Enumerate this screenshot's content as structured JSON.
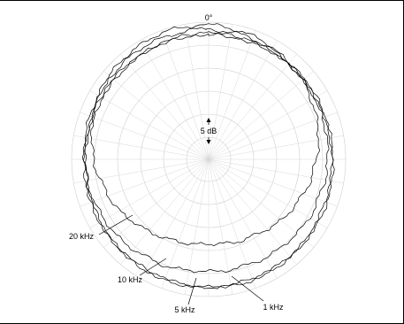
{
  "chart_data": {
    "type": "polar",
    "title": "",
    "top_label": "0°",
    "scale_label": "5 dB",
    "grid": true,
    "rings_db": [
      0,
      -5,
      -10,
      -15,
      -20,
      -25,
      -30
    ],
    "series": [
      {
        "name": "1 kHz",
        "radius_db_by_angle": {
          "angles_deg": [
            0,
            30,
            60,
            90,
            120,
            150,
            180,
            210,
            240,
            270,
            300,
            330
          ],
          "values_db": [
            0,
            -0.3,
            -0.8,
            -1.2,
            -1.6,
            -2.0,
            -2.2,
            -2.0,
            -1.6,
            -1.2,
            -0.8,
            -0.3
          ]
        }
      },
      {
        "name": "5 kHz",
        "radius_db_by_angle": {
          "angles_deg": [
            0,
            30,
            60,
            90,
            120,
            150,
            180,
            210,
            240,
            270,
            300,
            330
          ],
          "values_db": [
            0,
            -0.2,
            -0.6,
            -1.0,
            -1.4,
            -1.8,
            -2.0,
            -1.9,
            -1.5,
            -1.1,
            -0.6,
            -0.2
          ]
        }
      },
      {
        "name": "10 kHz",
        "radius_db_by_angle": {
          "angles_deg": [
            0,
            30,
            60,
            90,
            120,
            150,
            180,
            210,
            240,
            270,
            300,
            330
          ],
          "values_db": [
            0,
            -0.2,
            -0.5,
            -1.0,
            -1.8,
            -3.0,
            -3.8,
            -3.0,
            -1.8,
            -1.0,
            -0.5,
            -0.2
          ]
        }
      },
      {
        "name": "20 kHz",
        "radius_db_by_angle": {
          "angles_deg": [
            0,
            30,
            60,
            90,
            120,
            150,
            180,
            210,
            240,
            270,
            300,
            330
          ],
          "values_db": [
            0,
            -0.3,
            -1.0,
            -2.5,
            -4.5,
            -7.0,
            -8.5,
            -7.5,
            -5.0,
            -3.0,
            -1.2,
            -0.3
          ]
        }
      }
    ]
  }
}
